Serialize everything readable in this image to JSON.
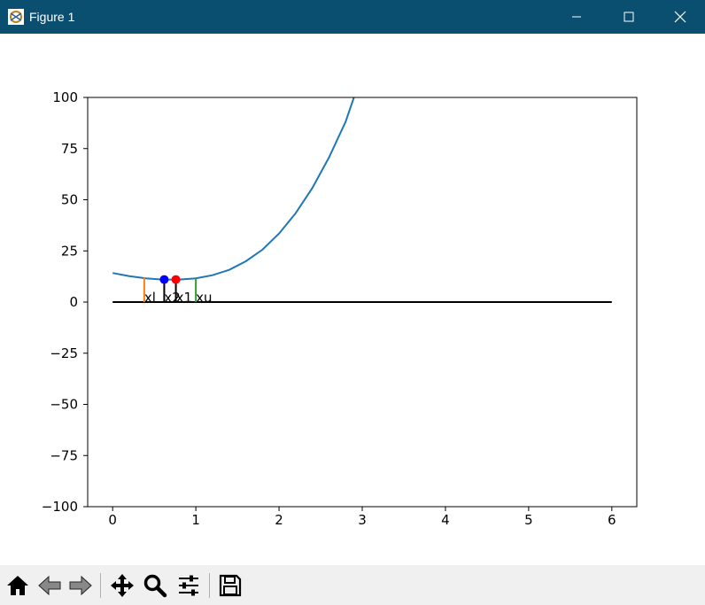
{
  "window": {
    "title": "Figure 1",
    "controls": [
      "minimize",
      "maximize",
      "close"
    ]
  },
  "toolbar": {
    "buttons": [
      {
        "name": "home-button",
        "icon": "home-icon"
      },
      {
        "name": "back-button",
        "icon": "back-arrow-icon"
      },
      {
        "name": "forward-button",
        "icon": "forward-arrow-icon"
      },
      {
        "name": "pan-button",
        "icon": "move-icon"
      },
      {
        "name": "zoom-button",
        "icon": "magnifier-icon"
      },
      {
        "name": "configure-subplots-button",
        "icon": "sliders-icon"
      },
      {
        "name": "save-button",
        "icon": "floppy-disk-icon"
      }
    ]
  },
  "chart_data": {
    "type": "line",
    "title": "",
    "xlabel": "",
    "ylabel": "",
    "xlim": [
      -0.3,
      6.3
    ],
    "ylim": [
      -100,
      100
    ],
    "xticks": [
      "0",
      "1",
      "2",
      "3",
      "4",
      "5",
      "6"
    ],
    "yticks": [
      "100",
      "75",
      "50",
      "25",
      "0",
      "−25",
      "−50",
      "−75",
      "−100"
    ],
    "grid": false,
    "series": [
      {
        "color": "#1f77b4",
        "x": [
          0,
          0.2,
          0.4,
          0.6,
          0.8,
          1.0,
          1.2,
          1.4,
          1.6,
          1.8,
          2.0,
          2.2,
          2.4,
          2.6,
          2.8,
          2.9
        ],
        "y": [
          14.2,
          12.7,
          11.6,
          11.0,
          11.0,
          11.6,
          13.1,
          15.7,
          19.9,
          25.6,
          33.5,
          43.4,
          55.7,
          70.6,
          88.1,
          100
        ]
      }
    ],
    "baseline": {
      "color": "#000000",
      "x": [
        0,
        6
      ],
      "y": [
        0,
        0
      ]
    },
    "markers": [
      {
        "label": "xl",
        "x": 0.38,
        "color": "#ff7f0e",
        "y_top": 12.0
      },
      {
        "label": "x2",
        "x": 0.62,
        "color": "#000000",
        "y_top": 11.0
      },
      {
        "label": "x1",
        "x": 0.76,
        "color": "#000000",
        "y_top": 11.0
      },
      {
        "label": "xu",
        "x": 1.0,
        "color": "#2ca02c",
        "y_top": 12.0
      }
    ],
    "points": [
      {
        "x": 0.62,
        "y": 11.0,
        "color": "#0000ff"
      },
      {
        "x": 0.76,
        "y": 11.0,
        "color": "#ff0000"
      }
    ]
  }
}
